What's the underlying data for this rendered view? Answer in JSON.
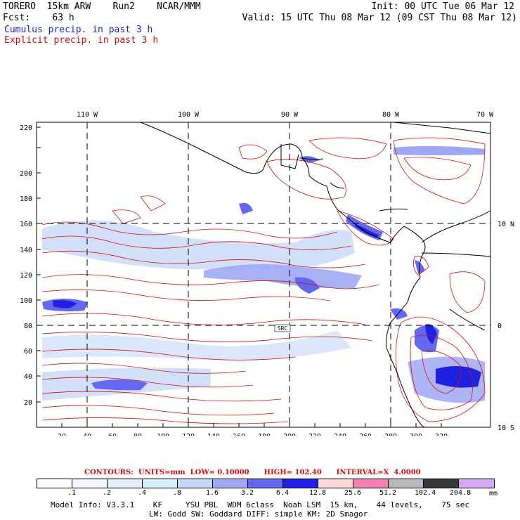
{
  "header": {
    "model": "TORERO  15km ARW    Run2    NCAR/MMM",
    "init": "Init: 00 UTC Tue 06 Mar 12",
    "fcst": "Fcst:    63 h",
    "valid": "Valid: 15 UTC Thu 08 Mar 12 (09 CST Thu 08 Mar 12)",
    "cumulus_label": "Cumulus precip. in past 3 h",
    "explicit_label": "Explicit precip. in past 3 h",
    "cumulus_color": "#2020c0",
    "explicit_color": "#d01010"
  },
  "map": {
    "top_lon_labels": [
      "110 W",
      "100 W",
      "90 W",
      "80 W",
      "70 W"
    ],
    "right_lat_labels": [
      "10 N",
      "0",
      "10 S"
    ],
    "y_tick_labels": [
      "20",
      "40",
      "60",
      "80",
      "100",
      "120",
      "140",
      "160",
      "180",
      "200",
      "220"
    ],
    "x_tick_labels": [
      "20",
      "40",
      "60",
      "80",
      "100",
      "120",
      "140",
      "160",
      "180",
      "200",
      "220",
      "240",
      "260",
      "280",
      "300",
      "320"
    ],
    "station_label": "SRC"
  },
  "legend": {
    "contour_caption": "CONTOURS:  UNITS=mm  LOW= 0.10000      HIGH= 102.40      INTERVAL=X  4.0000",
    "colors": [
      "#ffffff",
      "#f0f4ff",
      "#e4ecfc",
      "#d8f0fc",
      "#c8d8f8",
      "#a0a8f4",
      "#6468f0",
      "#2020e0",
      "#fcd8d8",
      "#f480b0",
      "#b8b8b8",
      "#383838",
      "#d8a8f8"
    ],
    "values": [
      ".1",
      ".2",
      ".4",
      ".8",
      "1.6",
      "3.2",
      "6.4",
      "12.8",
      "25.6",
      "51.2",
      "102.4",
      "204.8"
    ],
    "unit": "mm"
  },
  "model_info": {
    "line1": "Model Info: V3.3.1    KF     YSU PBL  WDM 6class  Noah LSM  15 km,    44 levels,    75 sec",
    "line2": "LW: Godd SW: Goddard DIFF: simple KM: 2D Smagor"
  }
}
